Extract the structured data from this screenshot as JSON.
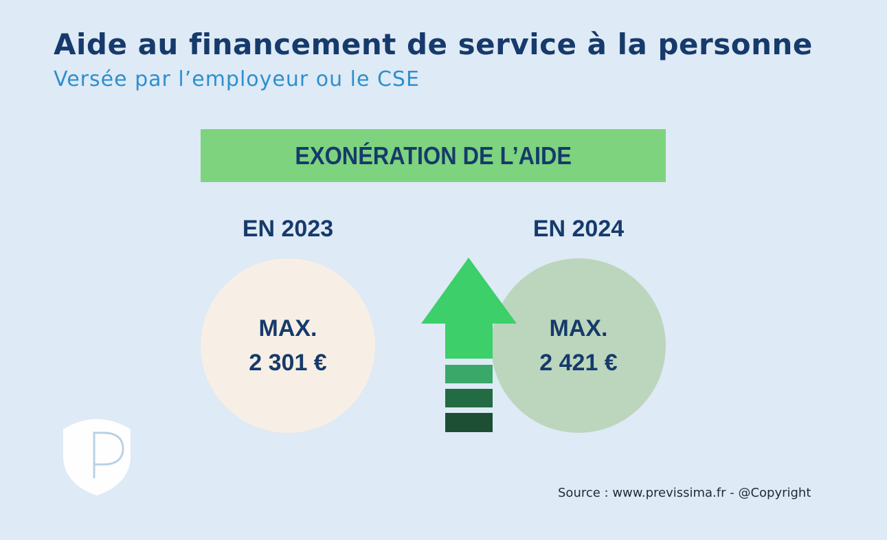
{
  "header": {
    "title": "Aide au financement de service à la personne",
    "subtitle": "Versée par l’employeur ou le CSE"
  },
  "banner": {
    "label": "EXONÉRATION DE L’AIDE"
  },
  "comparison": [
    {
      "year_label": "EN 2023",
      "line1": "MAX.",
      "line2": "2 301 €",
      "color": "#f7efe5"
    },
    {
      "year_label": "EN 2024",
      "line1": "MAX.",
      "line2": "2 421 €",
      "color": "#bcd6bd"
    }
  ],
  "icons": {
    "arrow": "up-arrow-icon",
    "logo": "shield-p-logo"
  },
  "footer": {
    "source": "Source : www.previssima.fr - @Copyright"
  },
  "colors": {
    "background": "#deeaf5",
    "title": "#163a6b",
    "subtitle": "#2e8fce",
    "banner": "#7dd37e",
    "arrow": "#3ccf6a"
  }
}
